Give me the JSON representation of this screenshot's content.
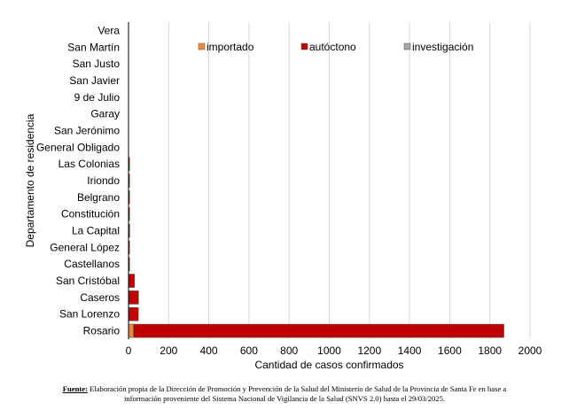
{
  "chart_data": {
    "type": "bar",
    "orientation": "horizontal",
    "stacked": true,
    "categories": [
      "Vera",
      "San Martín",
      "San Justo",
      "San Javier",
      "9 de Julio",
      "Garay",
      "San Jerónimo",
      "General Obligado",
      "Las Colonias",
      "Iriondo",
      "Belgrano",
      "Constitución",
      "La Capital",
      "General López",
      "Castellanos",
      "San Cristóbal",
      "Caseros",
      "San Lorenzo",
      "Rosario"
    ],
    "series": [
      {
        "name": "importado",
        "color": "#f0883a",
        "values": [
          0,
          0,
          0,
          0,
          0,
          0,
          0,
          0,
          0,
          0,
          0,
          0,
          0,
          0,
          0,
          0,
          2,
          3,
          25
        ]
      },
      {
        "name": "autóctono",
        "color": "#c00000",
        "values": [
          0,
          0,
          0,
          0,
          0,
          0,
          0,
          0,
          1,
          2,
          2,
          2,
          6,
          4,
          5,
          30,
          48,
          46,
          1845
        ]
      },
      {
        "name": "investigación",
        "color": "#a6a6a6",
        "values": [
          0,
          0,
          0,
          0,
          0,
          0,
          0,
          0,
          0,
          0,
          0,
          0,
          0,
          0,
          0,
          0,
          0,
          0,
          0
        ]
      }
    ],
    "xlabel": "Cantidad de casos confirmados",
    "ylabel": "Departamento de residencia",
    "xlim": [
      0,
      2000
    ],
    "xticks": [
      0,
      200,
      400,
      600,
      800,
      1000,
      1200,
      1400,
      1600,
      1800,
      2000
    ],
    "grid": "vertical",
    "legend": "top"
  },
  "source": {
    "label": "Fuente:",
    "line1": "Elaboración propia de la Dirección de Promoción y Prevención de la Salud del Ministerio de Salud de la Provincia de Santa Fe en base a",
    "line2": "información proveniente del Sistema Nacional de Vigilancia de la Salud (SNVS 2.0) hasta el 29/03/2025."
  }
}
